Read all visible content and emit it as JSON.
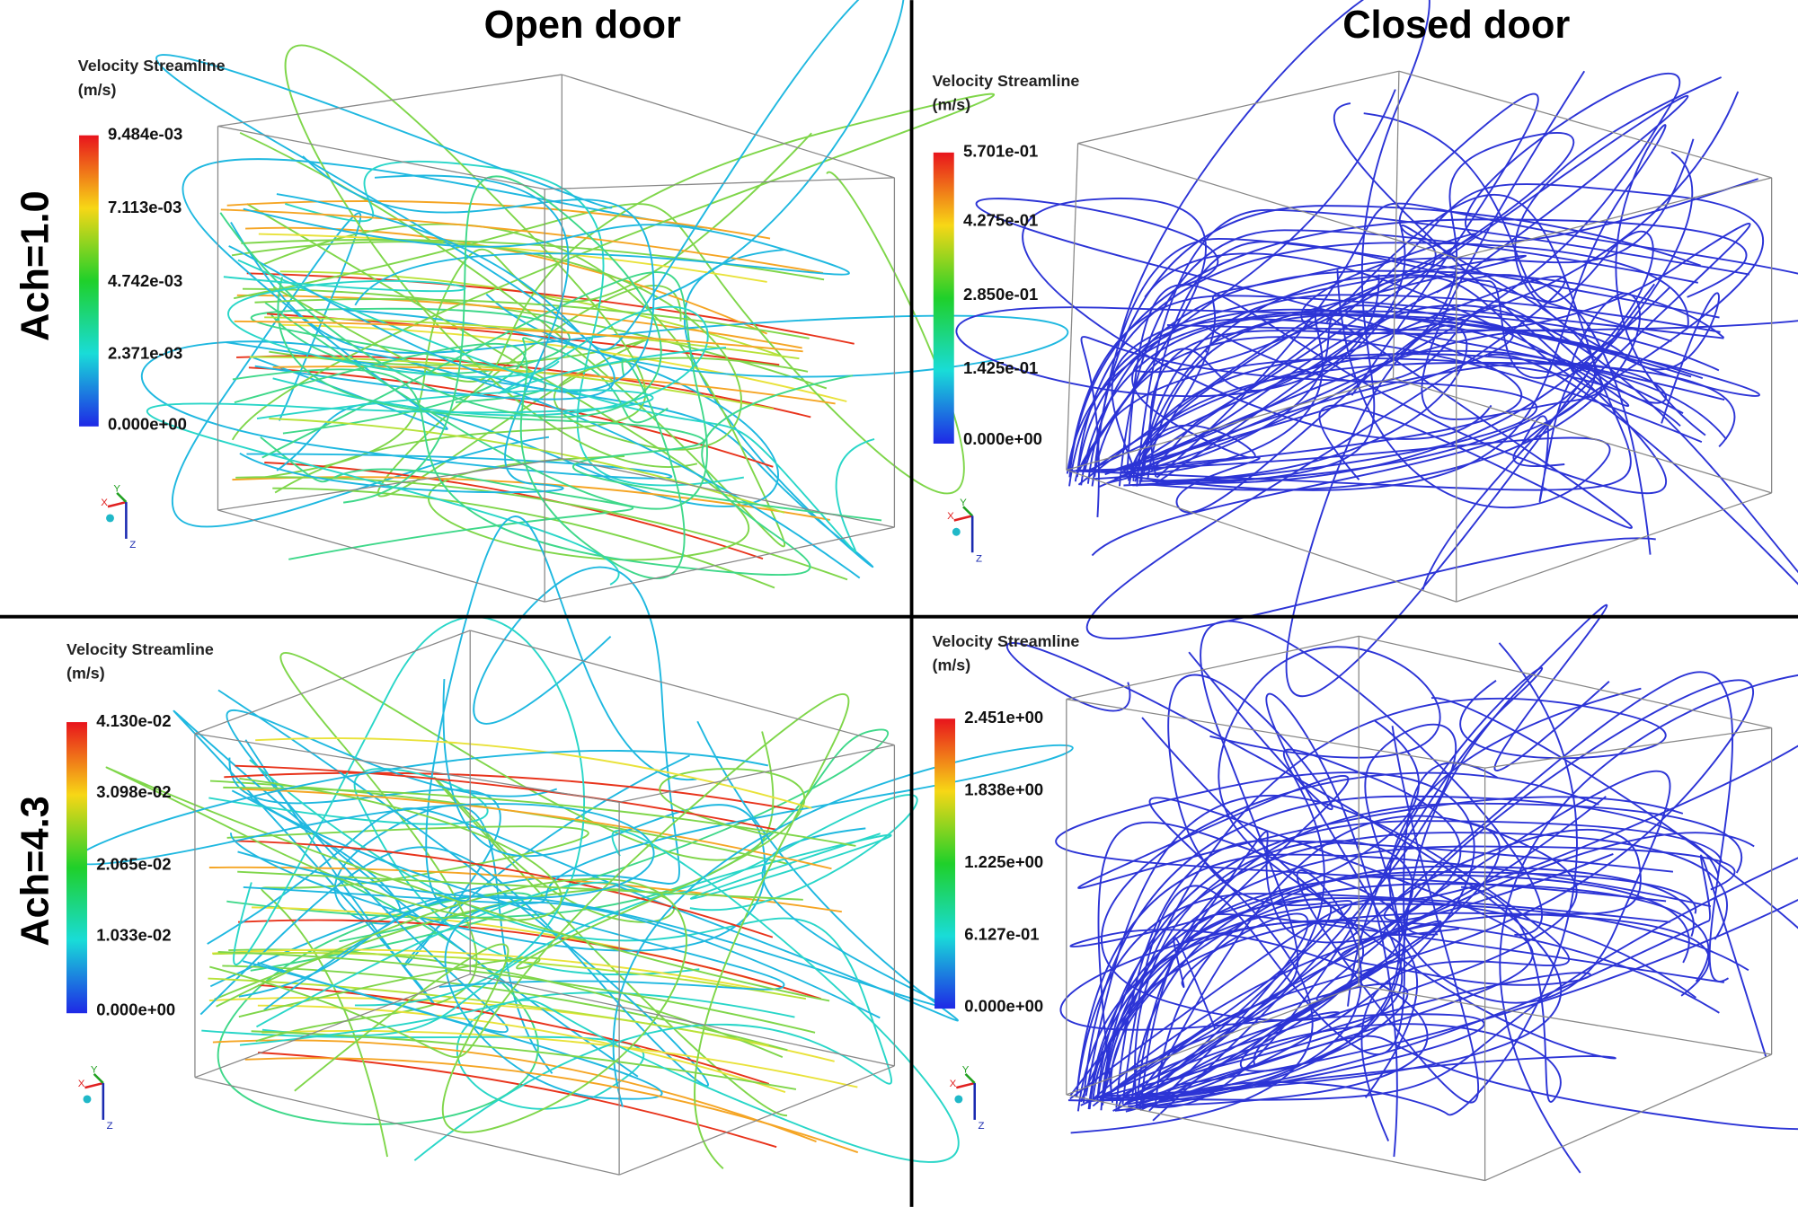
{
  "columns": [
    "Open door",
    "Closed door"
  ],
  "rows": [
    "Ach=1.0",
    "Ach=4.3"
  ],
  "triad_labels": [
    "X",
    "Y",
    "Z"
  ],
  "panels": [
    {
      "legend_title": "Velocity Streamline",
      "legend_unit": "(m/s)",
      "scale_labels": [
        "9.484e-03",
        "7.113e-03",
        "4.742e-03",
        "2.371e-03",
        "0.000e+00"
      ]
    },
    {
      "legend_title": "Velocity Streamline",
      "legend_unit": "(m/s)",
      "scale_labels": [
        "5.701e-01",
        "4.275e-01",
        "2.850e-01",
        "1.425e-01",
        "0.000e+00"
      ]
    },
    {
      "legend_title": "Velocity Streamline",
      "legend_unit": "(m/s)",
      "scale_labels": [
        "4.130e-02",
        "3.098e-02",
        "2.065e-02",
        "1.033e-02",
        "0.000e+00"
      ]
    },
    {
      "legend_title": "Velocity Streamline",
      "legend_unit": "(m/s)",
      "scale_labels": [
        "2.451e+00",
        "1.838e+00",
        "1.225e+00",
        "6.127e-01",
        "0.000e+00"
      ]
    }
  ]
}
